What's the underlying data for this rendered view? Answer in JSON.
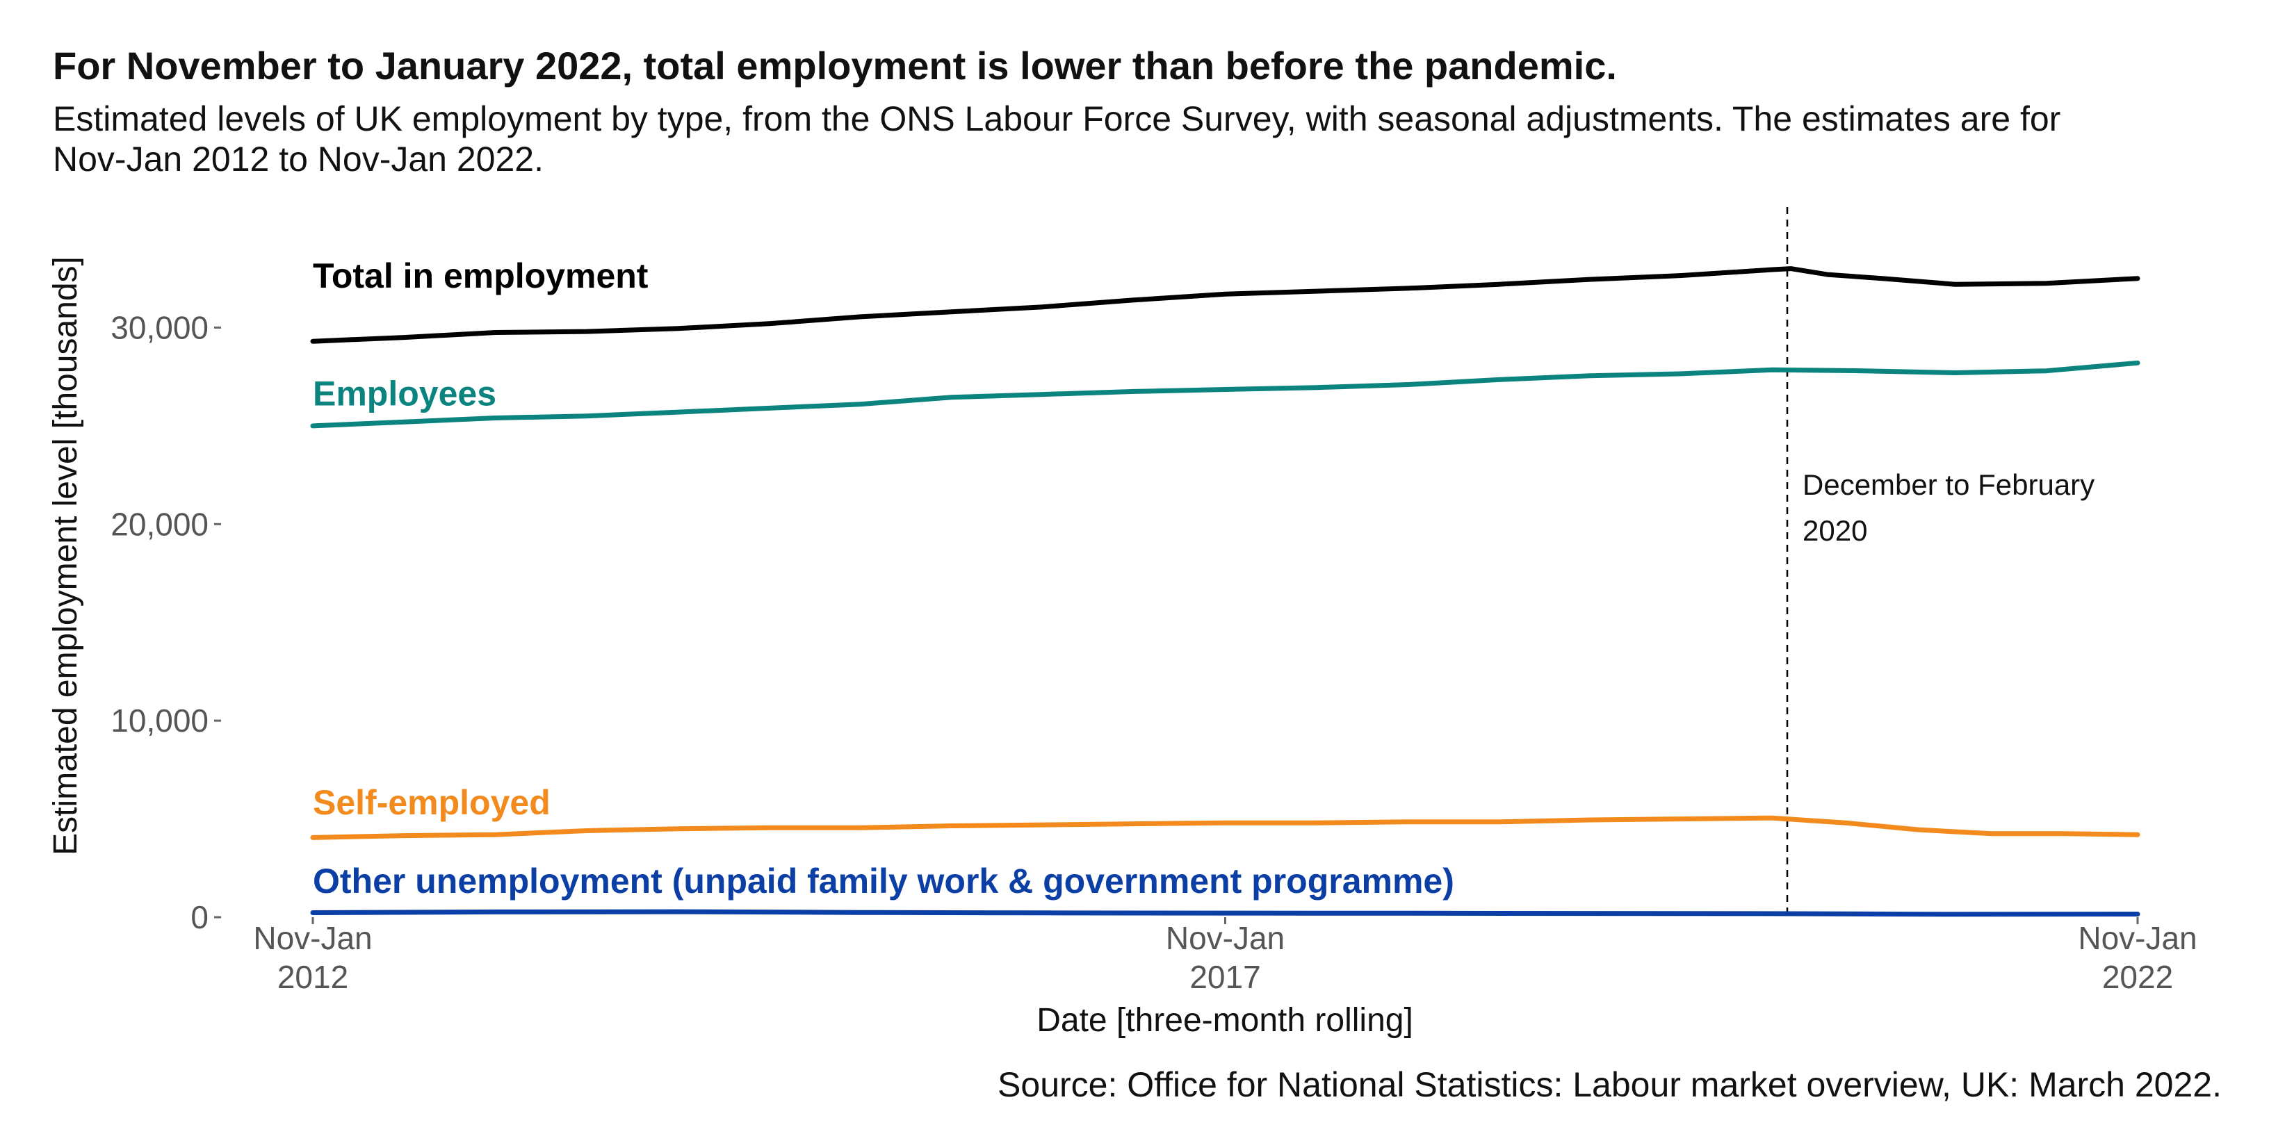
{
  "header": {
    "title": "For November to January 2022, total employment is lower than before the pandemic.",
    "subtitle": "Estimated levels of UK employment by type, from the ONS Labour Force Survey, with seasonal adjustments. The estimates are for Nov-Jan 2012 to Nov-Jan 2022."
  },
  "footer": {
    "source": "Source: Office for National Statistics: Labour market overview, UK: March 2022."
  },
  "chart_data": {
    "type": "line",
    "xlabel": "Date [three-month rolling]",
    "ylabel": "Estimated employment level [thousands]",
    "xlim": [
      2012,
      2022
    ],
    "ylim": [
      0,
      35000
    ],
    "x_ticks": [
      {
        "value": 2012,
        "line1": "Nov-Jan",
        "line2": "2012"
      },
      {
        "value": 2017,
        "line1": "Nov-Jan",
        "line2": "2017"
      },
      {
        "value": 2022,
        "line1": "Nov-Jan",
        "line2": "2022"
      }
    ],
    "y_ticks": [
      {
        "value": 0,
        "label": "0"
      },
      {
        "value": 10000,
        "label": "10,000"
      },
      {
        "value": 20000,
        "label": "20,000"
      },
      {
        "value": 30000,
        "label": "30,000"
      }
    ],
    "grid": false,
    "legend": "direct labels",
    "annotation": {
      "x": 2020.08,
      "line1": "December to February",
      "line2": "2020"
    },
    "series": [
      {
        "name": "Total in employment",
        "color": "#000000",
        "label_value": 32600,
        "points": [
          [
            2012,
            29300
          ],
          [
            2012.5,
            29500
          ],
          [
            2013,
            29750
          ],
          [
            2013.5,
            29800
          ],
          [
            2014,
            29950
          ],
          [
            2014.5,
            30200
          ],
          [
            2015,
            30550
          ],
          [
            2015.5,
            30800
          ],
          [
            2016,
            31050
          ],
          [
            2016.5,
            31400
          ],
          [
            2017,
            31700
          ],
          [
            2017.5,
            31850
          ],
          [
            2018,
            32000
          ],
          [
            2018.5,
            32200
          ],
          [
            2019,
            32450
          ],
          [
            2019.5,
            32650
          ],
          [
            2020,
            32950
          ],
          [
            2020.1,
            33000
          ],
          [
            2020.3,
            32700
          ],
          [
            2020.6,
            32500
          ],
          [
            2021,
            32200
          ],
          [
            2021.5,
            32250
          ],
          [
            2022,
            32500
          ]
        ]
      },
      {
        "name": "Employees",
        "color": "#0b8480",
        "label_value": 26600,
        "points": [
          [
            2012,
            25000
          ],
          [
            2012.5,
            25200
          ],
          [
            2013,
            25400
          ],
          [
            2013.5,
            25500
          ],
          [
            2014,
            25700
          ],
          [
            2014.5,
            25900
          ],
          [
            2015,
            26100
          ],
          [
            2015.5,
            26450
          ],
          [
            2016,
            26600
          ],
          [
            2016.5,
            26750
          ],
          [
            2017,
            26850
          ],
          [
            2017.5,
            26950
          ],
          [
            2018,
            27100
          ],
          [
            2018.5,
            27350
          ],
          [
            2019,
            27550
          ],
          [
            2019.5,
            27650
          ],
          [
            2020,
            27850
          ],
          [
            2020.5,
            27800
          ],
          [
            2021,
            27700
          ],
          [
            2021.5,
            27800
          ],
          [
            2022,
            28200
          ]
        ]
      },
      {
        "name": "Self-employed",
        "color": "#f28a1d",
        "label_value": 5800,
        "points": [
          [
            2012,
            4050
          ],
          [
            2012.5,
            4150
          ],
          [
            2013,
            4200
          ],
          [
            2013.5,
            4400
          ],
          [
            2014,
            4500
          ],
          [
            2014.5,
            4550
          ],
          [
            2015,
            4550
          ],
          [
            2015.5,
            4650
          ],
          [
            2016,
            4700
          ],
          [
            2016.5,
            4750
          ],
          [
            2017,
            4800
          ],
          [
            2017.5,
            4800
          ],
          [
            2018,
            4850
          ],
          [
            2018.5,
            4850
          ],
          [
            2019,
            4950
          ],
          [
            2019.5,
            5000
          ],
          [
            2020,
            5050
          ],
          [
            2020.4,
            4800
          ],
          [
            2020.8,
            4450
          ],
          [
            2021.2,
            4250
          ],
          [
            2021.6,
            4250
          ],
          [
            2022,
            4200
          ]
        ]
      },
      {
        "name": "Other unemployment (unpaid family work & government programme)",
        "color": "#0b3fa6",
        "label_value": 1800,
        "points": [
          [
            2012,
            230
          ],
          [
            2013,
            270
          ],
          [
            2014,
            280
          ],
          [
            2015,
            240
          ],
          [
            2016,
            220
          ],
          [
            2017,
            210
          ],
          [
            2018,
            200
          ],
          [
            2019,
            190
          ],
          [
            2020,
            180
          ],
          [
            2021,
            150
          ],
          [
            2022,
            160
          ]
        ]
      }
    ]
  }
}
